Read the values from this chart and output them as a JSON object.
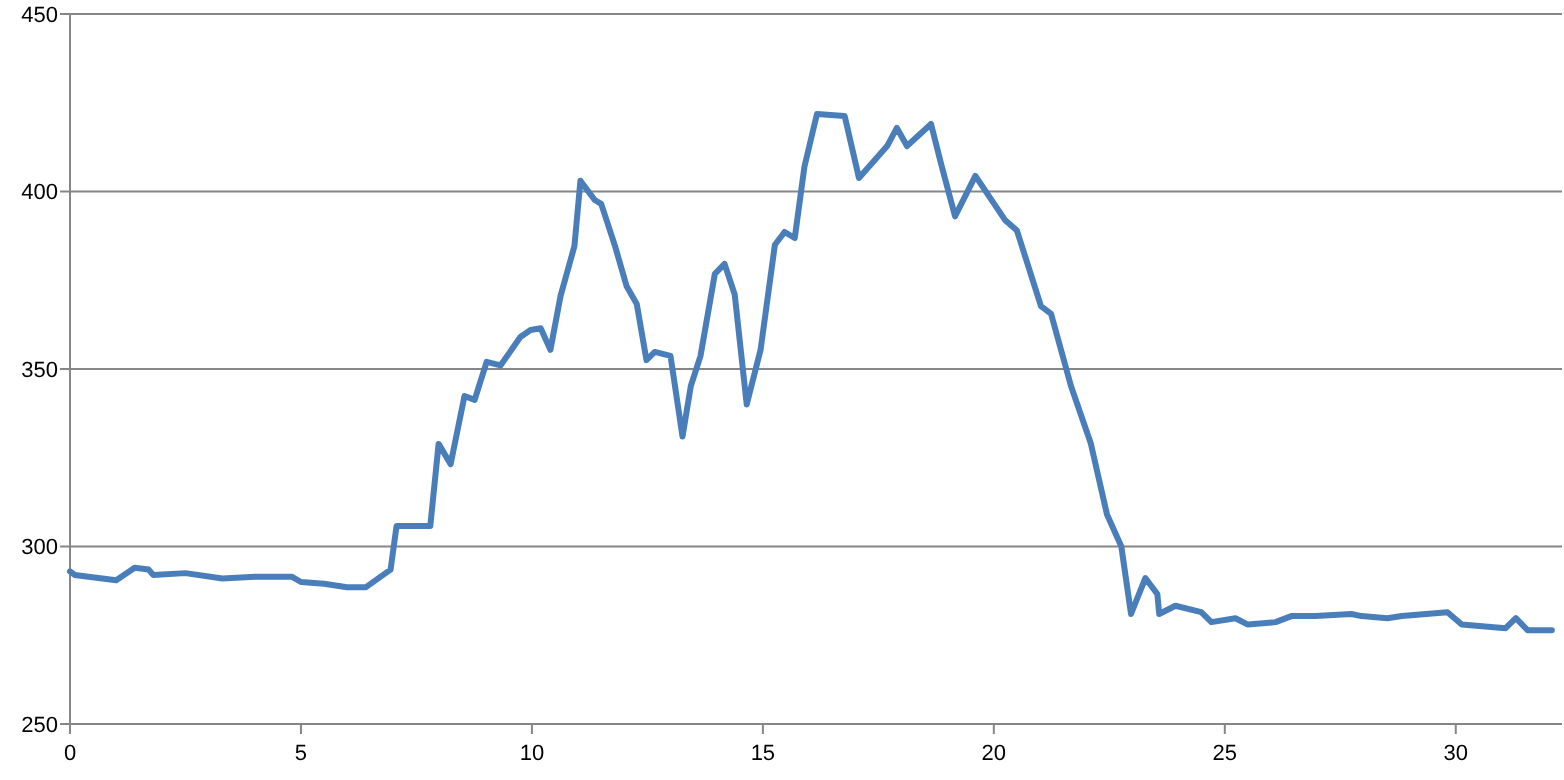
{
  "chart_data": {
    "type": "line",
    "xlim": [
      0,
      32.3
    ],
    "xticks": [
      0,
      5,
      10,
      15,
      20,
      25,
      30
    ],
    "ylim": [
      250,
      450
    ],
    "yticks": [
      250,
      300,
      350,
      400,
      450
    ],
    "grid": "y",
    "marker": "none",
    "line_style": "solid",
    "series": [
      {
        "color": "#4a7ebb",
        "x": [
          0,
          0.1,
          1,
          1.4,
          1.7,
          1.8,
          2.5,
          3.3,
          4,
          4.8,
          5,
          5.5,
          6,
          6.4,
          6.94,
          7.07,
          7.8,
          7.98,
          8.24,
          8.54,
          8.76,
          9.02,
          9.32,
          9.75,
          9.97,
          10.19,
          10.4,
          10.62,
          10.92,
          11.05,
          11.36,
          11.5,
          11.8,
          12.05,
          12.27,
          12.48,
          12.66,
          13,
          13.26,
          13.44,
          13.65,
          13.96,
          14.17,
          14.39,
          14.65,
          14.95,
          15.26,
          15.47,
          15.69,
          15.9,
          16.17,
          16.77,
          17.08,
          17.69,
          17.9,
          18.12,
          18.64,
          18.86,
          19.16,
          19.6,
          20.24,
          20.5,
          21.02,
          21.24,
          21.67,
          22.1,
          22.45,
          22.76,
          22.97,
          23.28,
          23.54,
          23.58,
          23.93,
          24.49,
          24.71,
          25.23,
          25.5,
          26.1,
          26.44,
          26.96,
          27.74,
          27.96,
          28.52,
          28.83,
          29.82,
          30.13,
          31.08,
          31.3,
          31.56,
          32.08
        ],
        "values": [
          293,
          292,
          290.5,
          294,
          293.5,
          292,
          292.5,
          291,
          291.5,
          291.5,
          290,
          289.5,
          288.5,
          288.5,
          293.5,
          305.8,
          305.8,
          328.9,
          323.2,
          342.4,
          341.3,
          352,
          351,
          359,
          361,
          361.5,
          355.4,
          370.6,
          384.6,
          403,
          397.6,
          396.5,
          384.6,
          373.3,
          368.3,
          352.5,
          354.8,
          353.7,
          331,
          345.2,
          353.7,
          376.8,
          379.6,
          371,
          340,
          355.4,
          385,
          388.6,
          386.9,
          407,
          421.8,
          421.3,
          403.8,
          412.8,
          417.9,
          412.8,
          419,
          407.7,
          393,
          404.4,
          392,
          389,
          367.7,
          365.5,
          345.2,
          329,
          309,
          300,
          281,
          291.1,
          286.6,
          281,
          283.3,
          281.5,
          278.7,
          279.8,
          278,
          278.7,
          280.4,
          280.4,
          281,
          280.4,
          279.8,
          280.4,
          281.5,
          278,
          277,
          279.8,
          276.4,
          276.4
        ]
      }
    ]
  }
}
